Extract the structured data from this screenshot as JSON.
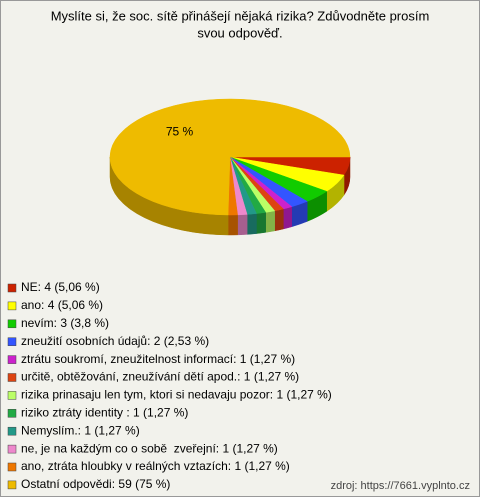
{
  "chart_data": {
    "type": "pie",
    "title_lines": [
      "Myslíte si, že soc. sítě přinášejí nějaká rizika? Zdůvodněte prosím",
      "svou odpověď."
    ],
    "categories": [
      "NE: 4 (5,06 %)",
      "ano: 4 (5,06 %)",
      "nevím: 3 (3,8 %)",
      "zneužití osobních údajů: 2 (2,53 %)",
      "ztrátu soukromí, zneužitelnost informací: 1 (1,27 %)",
      "určitě, obtěžování, zneužívání dětí apod.: 1 (1,27 %)",
      "rizika prinasaju len tym, ktori si nedavaju pozor: 1 (1,27 %)",
      "riziko ztráty identity : 1 (1,27 %)",
      "Nemyslím.: 1 (1,27 %)",
      "ne, je na každým co o sobě  zveřejní: 1 (1,27 %)",
      "ano, ztráta hloubky v reálných vztazích: 1 (1,27 %)",
      "Ostatní odpovědi: 59 (75 %)"
    ],
    "values": [
      5.06,
      5.06,
      3.8,
      2.53,
      1.27,
      1.27,
      1.27,
      1.27,
      1.27,
      1.27,
      1.27,
      75
    ],
    "value_labels": [
      null,
      null,
      null,
      null,
      null,
      null,
      null,
      null,
      null,
      null,
      null,
      "75 %"
    ],
    "colors": [
      "#cc2200",
      "#ffff00",
      "#11cc00",
      "#3355ff",
      "#cc22cc",
      "#dd4411",
      "#bbff66",
      "#22aa44",
      "#229988",
      "#ee88cc",
      "#ee7700",
      "#eebb00"
    ],
    "source": "zdroj: https://7661.vyplnto.cz"
  }
}
